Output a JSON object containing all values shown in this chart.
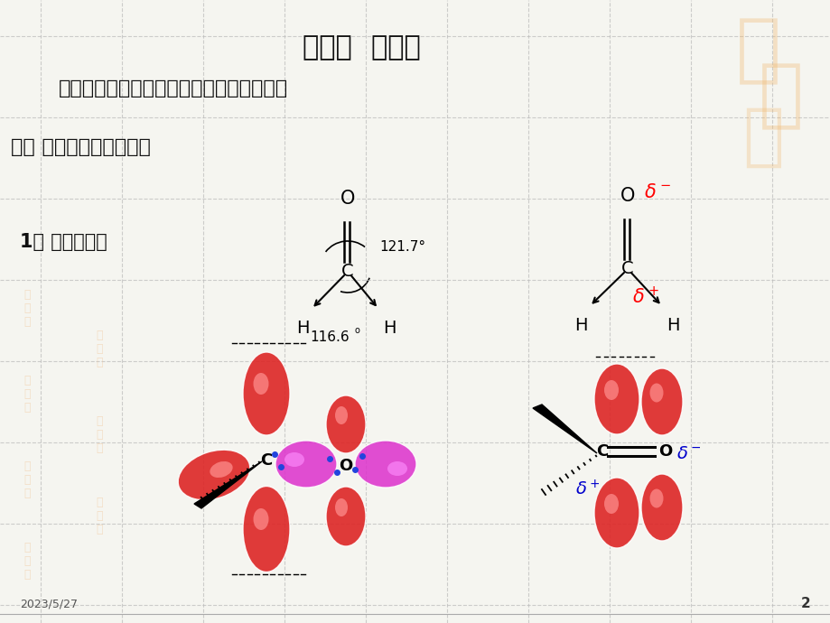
{
  "title": "第一节  醛、酮",
  "subtitle": "醛和酮是分子中含有羰基官能团的有机物。",
  "section_title": "一、 醛、酮的结构和分类",
  "subsection": "1、 醛酮的结构",
  "bg_color": "#f5f5f0",
  "grid_color": "#cccccc",
  "date_text": "2023/5/27",
  "page_num": "2",
  "angle1": "121.7°",
  "angle2": "116.6",
  "watermark_color": "#f0c090"
}
